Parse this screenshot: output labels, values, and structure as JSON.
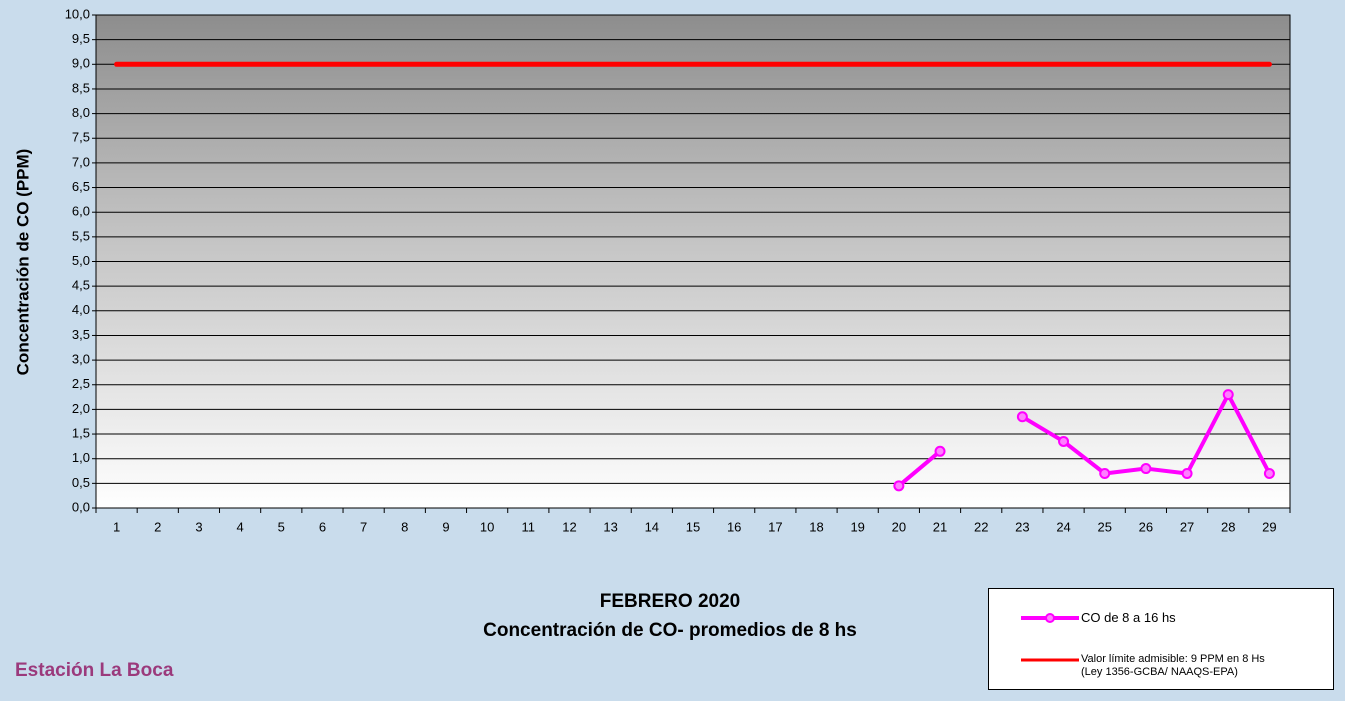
{
  "chart_data": {
    "type": "line",
    "title": "FEBRERO 2020",
    "subtitle": "Concentración de CO- promedios de 8 hs",
    "annotation": "Estación La Boca",
    "y_label": "Concentración de CO (PPM)",
    "categories": [
      "1",
      "2",
      "3",
      "4",
      "5",
      "6",
      "7",
      "8",
      "9",
      "10",
      "11",
      "12",
      "13",
      "14",
      "15",
      "16",
      "17",
      "18",
      "19",
      "20",
      "21",
      "22",
      "23",
      "24",
      "25",
      "26",
      "27",
      "28",
      "29"
    ],
    "series": [
      {
        "name": "CO de 8 a 16 hs",
        "color": "#ff00ff",
        "marker": true,
        "values": [
          null,
          null,
          null,
          null,
          null,
          null,
          null,
          null,
          null,
          null,
          null,
          null,
          null,
          null,
          null,
          null,
          null,
          null,
          null,
          0.45,
          1.15,
          null,
          1.85,
          1.35,
          0.7,
          0.8,
          0.7,
          2.3,
          0.7
        ]
      },
      {
        "name": "Valor límite admisible: 9 PPM en 8 Hs (Ley 1356-GCBA/ NAAQS-EPA)",
        "color": "#ff0000",
        "marker": false,
        "values": [
          9,
          9,
          9,
          9,
          9,
          9,
          9,
          9,
          9,
          9,
          9,
          9,
          9,
          9,
          9,
          9,
          9,
          9,
          9,
          9,
          9,
          9,
          9,
          9,
          9,
          9,
          9,
          9,
          9
        ]
      }
    ],
    "ylim": [
      0,
      10
    ],
    "yticks": [
      {
        "value": 0,
        "label": "0,0"
      },
      {
        "value": 0.5,
        "label": "0,5"
      },
      {
        "value": 1,
        "label": "1,0"
      },
      {
        "value": 1.5,
        "label": "1,5"
      },
      {
        "value": 2,
        "label": "2,0"
      },
      {
        "value": 2.5,
        "label": "2,5"
      },
      {
        "value": 3,
        "label": "3,0"
      },
      {
        "value": 3.5,
        "label": "3,5"
      },
      {
        "value": 4,
        "label": "4,0"
      },
      {
        "value": 4.5,
        "label": "4,5"
      },
      {
        "value": 5,
        "label": "5,0"
      },
      {
        "value": 5.5,
        "label": "5,5"
      },
      {
        "value": 6,
        "label": "6,0"
      },
      {
        "value": 6.5,
        "label": "6,5"
      },
      {
        "value": 7,
        "label": "7,0"
      },
      {
        "value": 7.5,
        "label": "7,5"
      },
      {
        "value": 8,
        "label": "8,0"
      },
      {
        "value": 8.5,
        "label": "8,5"
      },
      {
        "value": 9,
        "label": "9,0"
      },
      {
        "value": 9.5,
        "label": "9,5"
      },
      {
        "value": 10,
        "label": "10,0"
      }
    ],
    "grid": true
  }
}
